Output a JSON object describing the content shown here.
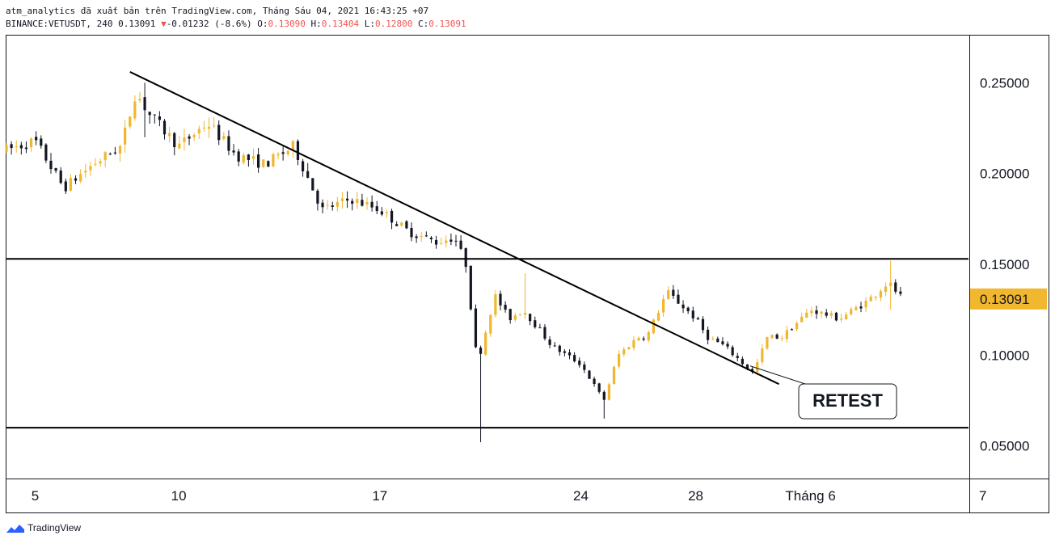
{
  "header": {
    "line1": "atm_analytics đã xuất bản trên TradingView.com, Tháng Sáu 04, 2021 16:43:25 +07",
    "symbol": "BINANCE:VETUSDT, 240 0.13091",
    "change_arrow": "▼",
    "change": "-0.01232 (-8.6%)",
    "o_label": "O:",
    "o_value": "0.13090",
    "h_label": "H:",
    "h_value": "0.13404",
    "l_label": "L:",
    "l_value": "0.12800",
    "c_label": "C:",
    "c_value": "0.13091"
  },
  "brand": {
    "name": "TradingView"
  },
  "colors": {
    "bull": "#f0b72f",
    "bear": "#131722",
    "line": "#000000",
    "price_tag": "#f0b72f"
  },
  "chart_data": {
    "type": "candlestick",
    "symbol": "VETUSDT",
    "interval": "240",
    "y_axis": {
      "ticks": [
        0.25,
        0.2,
        0.15,
        0.1,
        0.05
      ],
      "tick_labels": [
        "0.25000",
        "0.20000",
        "0.15000",
        "0.10000",
        "0.05000"
      ],
      "range": [
        0.032,
        0.276
      ]
    },
    "x_axis": {
      "tick_labels": [
        "5",
        "10",
        "17",
        "24",
        "28",
        "Tháng 6",
        "7"
      ],
      "tick_index": [
        2,
        7,
        14,
        21,
        25,
        29,
        35
      ],
      "range_days": [
        3,
        36.5
      ]
    },
    "last_price": 0.13091,
    "last_price_label": "0.13091",
    "horizontal_levels": [
      0.153,
      0.06
    ],
    "trendline": {
      "start": [
        7.3,
        0.256
      ],
      "end": [
        29.9,
        0.084
      ]
    },
    "annotation": {
      "text": "RETEST",
      "points_to": [
        28.9,
        0.094
      ]
    },
    "path_days": [
      3.0,
      4.0,
      5.0,
      6.0,
      7.0,
      7.5,
      8.0,
      9.0,
      10.0,
      11.0,
      12.0,
      13.0,
      14.0,
      15.0,
      16.0,
      17.0,
      18.0,
      18.6,
      19.0,
      19.4,
      20.0,
      20.5,
      21.0,
      22.0,
      23.0,
      23.8,
      24.3,
      25.0,
      25.3,
      26.0,
      27.0,
      27.4,
      28.0,
      29.0,
      29.5,
      30.0,
      31.0,
      32.0,
      33.0,
      33.7,
      34.2
    ],
    "path_values": [
      0.213,
      0.218,
      0.192,
      0.205,
      0.215,
      0.245,
      0.232,
      0.215,
      0.228,
      0.21,
      0.205,
      0.215,
      0.18,
      0.186,
      0.18,
      0.168,
      0.162,
      0.165,
      0.15,
      0.095,
      0.133,
      0.12,
      0.125,
      0.105,
      0.095,
      0.075,
      0.1,
      0.11,
      0.11,
      0.135,
      0.12,
      0.11,
      0.105,
      0.09,
      0.11,
      0.11,
      0.125,
      0.12,
      0.13,
      0.14,
      0.131
    ],
    "wick_events": [
      [
        19.5,
        0.052,
        0.1
      ],
      [
        23.8,
        0.065,
        0.08
      ],
      [
        21.0,
        0.12,
        0.145
      ],
      [
        7.9,
        0.22,
        0.25
      ],
      [
        33.8,
        0.125,
        0.152
      ]
    ]
  }
}
